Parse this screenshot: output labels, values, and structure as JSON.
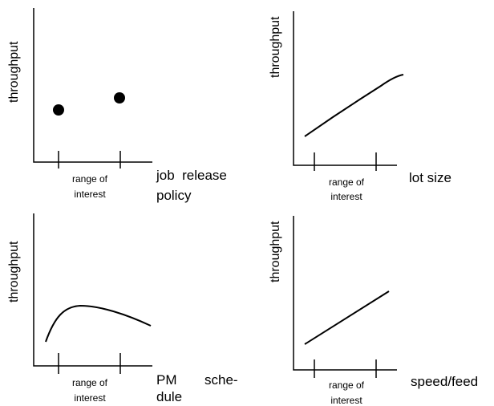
{
  "diagrams": [
    {
      "ylabel": "throughput",
      "range_label_line1": "range of",
      "range_label_line2": "interest",
      "xlabel_line1": "job  release",
      "xlabel_line2": "policy"
    },
    {
      "ylabel": "throughput",
      "range_label_line1": "range of",
      "range_label_line2": "interest",
      "xlabel_line1": "lot size",
      "xlabel_line2": ""
    },
    {
      "ylabel": "throughput",
      "range_label_line1": "range of",
      "range_label_line2": "interest",
      "xlabel_line1": "PM",
      "xlabel_line1b": "sche-",
      "xlabel_line2": "dule"
    },
    {
      "ylabel": "throughput",
      "range_label_line1": "range of",
      "range_label_line2": "interest",
      "xlabel_line1": "speed/feed",
      "xlabel_line2": ""
    }
  ]
}
